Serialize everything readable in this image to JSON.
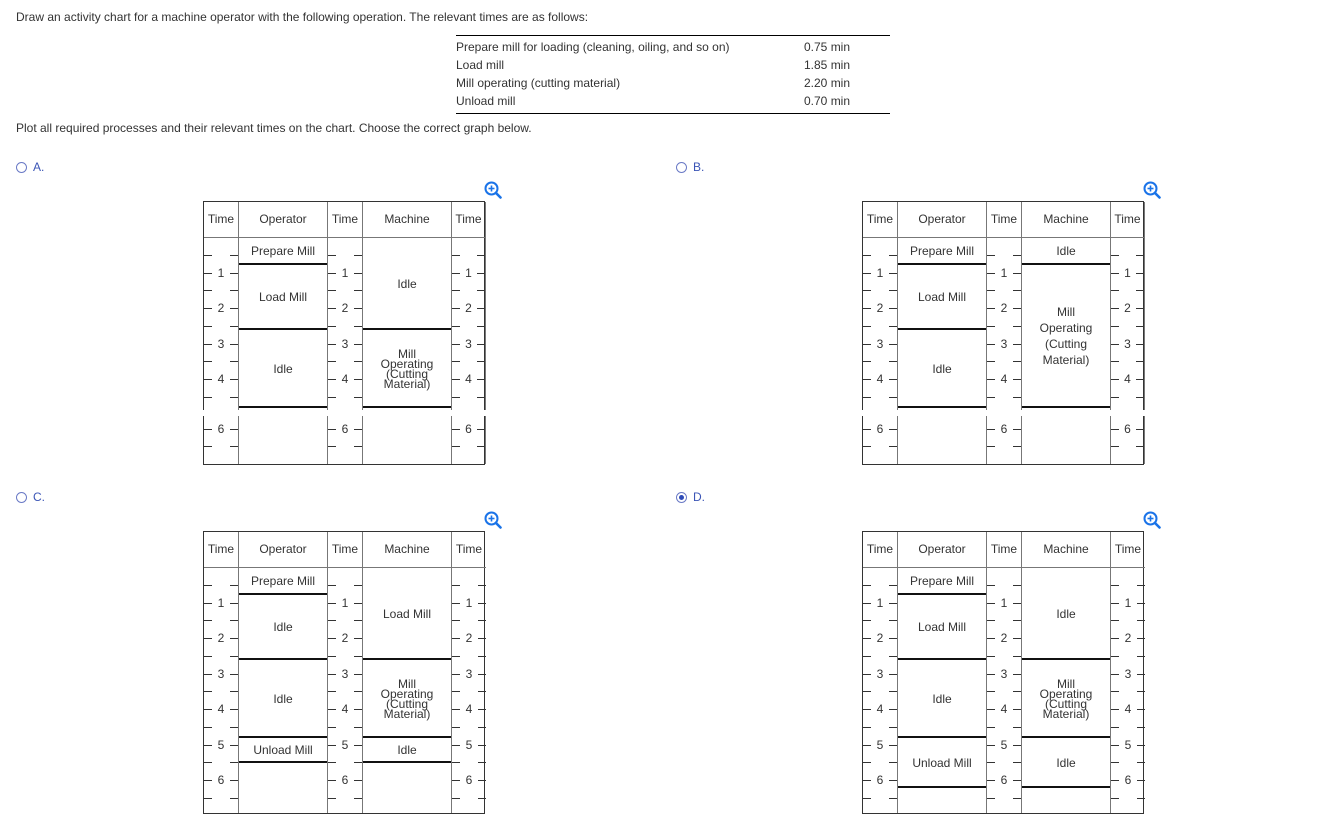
{
  "question": "Draw an activity chart for a machine operator with the following operation. The relevant times are as follows:",
  "times_table": [
    {
      "activity": "Prepare mill for loading (cleaning, oiling, and so on)",
      "time": "0.75 min"
    },
    {
      "activity": "Load mill",
      "time": "1.85 min"
    },
    {
      "activity": "Mill operating (cutting material)",
      "time": "2.20 min"
    },
    {
      "activity": "Unload mill",
      "time": "0.70 min"
    }
  ],
  "instruction": "Plot all required processes and their relevant times on the chart. Choose the correct graph below.",
  "icons": {
    "zoom": "zoom-in-icon",
    "radio": "radio-button"
  },
  "colors": {
    "option_text": "#3b55b6",
    "zoom_icon": "#1a73e8"
  },
  "options": [
    {
      "label": "A.",
      "selected": false
    },
    {
      "label": "B.",
      "selected": false
    },
    {
      "label": "C.",
      "selected": false
    },
    {
      "label": "D.",
      "selected": true
    }
  ],
  "chart_data": [
    {
      "option": "A",
      "type": "table",
      "headers": [
        "Time",
        "Operator",
        "Time",
        "Machine",
        "Time"
      ],
      "time_max": 7.0,
      "axis_break": [
        4.85,
        5.45
      ],
      "tick_labels": [
        "1",
        "2",
        "3",
        "4",
        "6"
      ],
      "operator": [
        {
          "label": "Prepare Mill",
          "start": 0,
          "end": 0.75
        },
        {
          "label": "Load Mill",
          "start": 0.75,
          "end": 2.6
        },
        {
          "label": "Idle",
          "start": 2.6,
          "end": 4.8
        }
      ],
      "machine": [
        {
          "label": "Idle",
          "start": 0,
          "end": 2.6
        },
        {
          "label": "Mill Operating (Cutting Material)",
          "start": 2.6,
          "end": 4.8
        }
      ]
    },
    {
      "option": "B",
      "type": "table",
      "headers": [
        "Time",
        "Operator",
        "Time",
        "Machine",
        "Time"
      ],
      "time_max": 7.0,
      "axis_break": [
        4.85,
        5.45
      ],
      "tick_labels": [
        "1",
        "2",
        "3",
        "4",
        "6"
      ],
      "operator": [
        {
          "label": "Prepare Mill",
          "start": 0,
          "end": 0.75
        },
        {
          "label": "Load Mill",
          "start": 0.75,
          "end": 2.6
        },
        {
          "label": "Idle",
          "start": 2.6,
          "end": 4.8
        }
      ],
      "machine": [
        {
          "label": "Idle",
          "start": 0,
          "end": 0.75
        },
        {
          "label": "Mill Operating (Cutting Material)",
          "start": 0.75,
          "end": 4.8
        }
      ]
    },
    {
      "option": "C",
      "type": "table",
      "headers": [
        "Time",
        "Operator",
        "Time",
        "Machine",
        "Time"
      ],
      "time_max": 6.93,
      "tick_labels": [
        "1",
        "2",
        "3",
        "4",
        "5",
        "6"
      ],
      "operator": [
        {
          "label": "Prepare Mill",
          "start": 0,
          "end": 0.75
        },
        {
          "label": "Idle",
          "start": 0.75,
          "end": 2.6
        },
        {
          "label": "Idle",
          "start": 2.6,
          "end": 4.8
        },
        {
          "label": "Unload Mill",
          "start": 4.8,
          "end": 5.5
        }
      ],
      "machine": [
        {
          "label": "Load Mill",
          "start": 0,
          "end": 2.6
        },
        {
          "label": "Mill Operating (Cutting Material)",
          "start": 2.6,
          "end": 4.8
        },
        {
          "label": "Idle",
          "start": 4.8,
          "end": 5.5
        }
      ]
    },
    {
      "option": "D",
      "type": "table",
      "headers": [
        "Time",
        "Operator",
        "Time",
        "Machine",
        "Time"
      ],
      "time_max": 6.93,
      "tick_labels": [
        "1",
        "2",
        "3",
        "4",
        "5",
        "6"
      ],
      "operator": [
        {
          "label": "Prepare Mill",
          "start": 0,
          "end": 0.75
        },
        {
          "label": "Load Mill",
          "start": 0.75,
          "end": 2.6
        },
        {
          "label": "Idle",
          "start": 2.6,
          "end": 4.8
        },
        {
          "label": "Unload Mill",
          "start": 4.8,
          "end": 6.2
        }
      ],
      "machine": [
        {
          "label": "Idle",
          "start": 0,
          "end": 2.6
        },
        {
          "label": "Mill Operating (Cutting Material)",
          "start": 2.6,
          "end": 4.8
        },
        {
          "label": "Idle",
          "start": 4.8,
          "end": 6.2
        }
      ]
    }
  ]
}
